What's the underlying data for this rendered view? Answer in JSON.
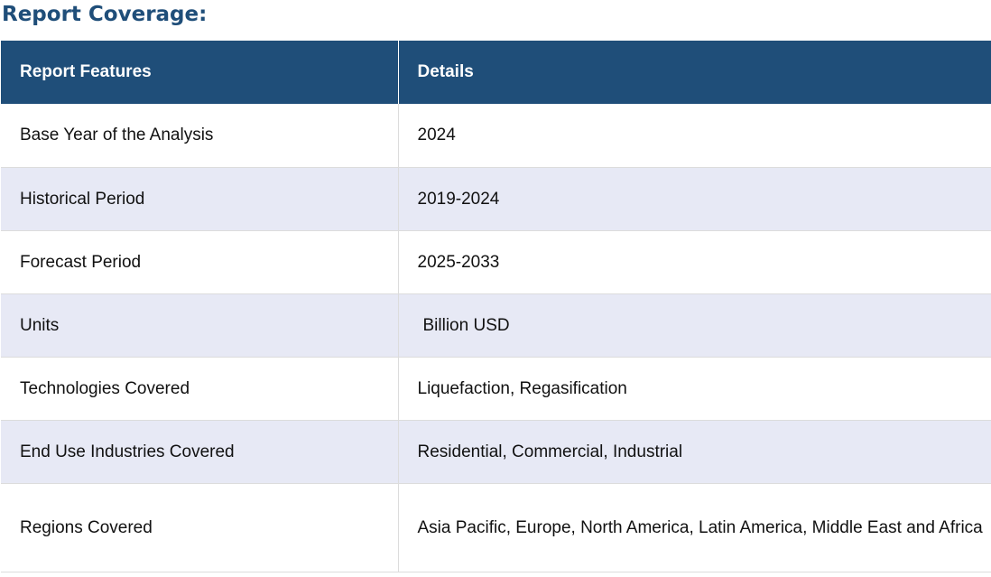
{
  "title": "Report Coverage:",
  "table": {
    "headers": [
      "Report Features",
      "Details"
    ],
    "rows": [
      {
        "feature": "Base Year of the Analysis",
        "details": "2024"
      },
      {
        "feature": "Historical Period",
        "details": "2019-2024"
      },
      {
        "feature": "Forecast Period",
        "details": "2025-2033"
      },
      {
        "feature": "Units",
        "details": "Billion USD"
      },
      {
        "feature": "Technologies Covered",
        "details": "Liquefaction, Regasification"
      },
      {
        "feature": "End Use Industries Covered",
        "details": "Residential, Commercial, Industrial"
      },
      {
        "feature": "Regions Covered",
        "details": "Asia Pacific, Europe, North America, Latin America, Middle East and Africa"
      }
    ]
  },
  "colors": {
    "header_bg": "#1f4e79",
    "title_text": "#1f4e79",
    "alt_row_bg": "#e7e9f5"
  }
}
